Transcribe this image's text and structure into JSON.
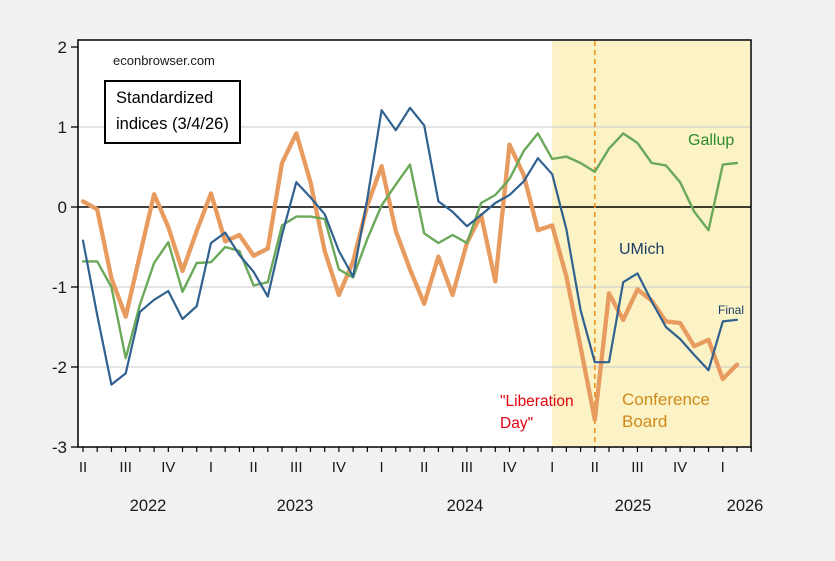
{
  "watermark": "econbrowser.com",
  "note_box": {
    "line1": "Standardized",
    "line2": "indices (3/4/26)"
  },
  "annotations": {
    "gallup": "Gallup",
    "umich": "UMich",
    "final": "Final",
    "conference_board_line1": "Conference",
    "conference_board_line2": "Board",
    "liberation_line1": "\"Liberation",
    "liberation_line2": "Day\""
  },
  "colors": {
    "background": "#f1f1ef",
    "plot_background": "#ffffff",
    "shaded_region": "#fbf2c5",
    "gridline": "#c9c9c9",
    "zero_line": "#000000",
    "frame": "#000000",
    "umich_line": "#30618f",
    "gallup_line": "#6ba95a",
    "conference_board_line": "#e89b5f",
    "vline": "#f0941e",
    "liberation_text": "#e3000f",
    "conference_text": "#cf8a1b",
    "umich_text": "#1c3e66",
    "gallup_text": "#2e8b2e"
  },
  "chart_data": {
    "type": "line",
    "title": "Standardized indices (3/4/26)",
    "source": "econbrowser.com",
    "freq": "monthly",
    "ylim": [
      -3,
      2
    ],
    "y_ticks": [
      2,
      1,
      0,
      -1,
      -2,
      -3
    ],
    "grid_values": [
      1,
      -1,
      -2
    ],
    "zero_line": 0,
    "legend_position": "labels-on-chart",
    "months": [
      "2022-04",
      "2022-05",
      "2022-06",
      "2022-07",
      "2022-08",
      "2022-09",
      "2022-10",
      "2022-11",
      "2022-12",
      "2023-01",
      "2023-02",
      "2023-03",
      "2023-04",
      "2023-05",
      "2023-06",
      "2023-07",
      "2023-08",
      "2023-09",
      "2023-10",
      "2023-11",
      "2023-12",
      "2024-01",
      "2024-02",
      "2024-03",
      "2024-04",
      "2024-05",
      "2024-06",
      "2024-07",
      "2024-08",
      "2024-09",
      "2024-10",
      "2024-11",
      "2024-12",
      "2025-01",
      "2025-02",
      "2025-03",
      "2025-04",
      "2025-05",
      "2025-06",
      "2025-07",
      "2025-08",
      "2025-09",
      "2025-10",
      "2025-11",
      "2025-12",
      "2026-01",
      "2026-02"
    ],
    "quarter_tick_labels": [
      "II",
      "III",
      "IV",
      "I",
      "II",
      "III",
      "IV",
      "I",
      "II",
      "III",
      "IV",
      "I",
      "II",
      "III",
      "IV",
      "I"
    ],
    "year_labels": [
      "2022",
      "2023",
      "2024",
      "2025",
      "2026"
    ],
    "shaded_region": {
      "from": "2025-01",
      "to": "2026-03"
    },
    "vline": {
      "x": "2025-04",
      "label": "Liberation Day"
    },
    "series": [
      {
        "name": "UMich",
        "color": "#30618f",
        "values": [
          -0.42,
          -1.35,
          -2.22,
          -2.08,
          -1.31,
          -1.16,
          -1.05,
          -1.4,
          -1.24,
          -0.45,
          -0.32,
          -0.6,
          -0.81,
          -1.12,
          -0.35,
          0.31,
          0.12,
          -0.09,
          -0.55,
          -0.87,
          0.1,
          1.21,
          0.96,
          1.24,
          1.02,
          0.07,
          -0.06,
          -0.24,
          -0.1,
          0.05,
          0.15,
          0.32,
          0.61,
          0.41,
          -0.28,
          -1.29,
          -1.94,
          -1.94,
          -0.94,
          -0.83,
          -1.18,
          -1.5,
          -1.65,
          -1.85,
          -2.04,
          -1.43,
          -1.41
        ]
      },
      {
        "name": "Gallup",
        "color": "#6ba95a",
        "values": [
          -0.68,
          -0.68,
          -1.0,
          -1.89,
          -1.22,
          -0.7,
          -0.44,
          -1.06,
          -0.7,
          -0.69,
          -0.5,
          -0.55,
          -0.98,
          -0.94,
          -0.23,
          -0.12,
          -0.12,
          -0.15,
          -0.78,
          -0.88,
          -0.4,
          0.02,
          0.28,
          0.53,
          -0.33,
          -0.45,
          -0.35,
          -0.45,
          0.05,
          0.15,
          0.35,
          0.7,
          0.92,
          0.6,
          0.63,
          0.55,
          0.44,
          0.73,
          0.92,
          0.8,
          0.55,
          0.52,
          0.31,
          -0.06,
          -0.29,
          0.53,
          0.55
        ]
      },
      {
        "name": "Conference Board",
        "color": "#e89b5f",
        "values": [
          0.07,
          -0.03,
          -0.89,
          -1.37,
          -0.6,
          0.16,
          -0.25,
          -0.8,
          -0.3,
          0.17,
          -0.43,
          -0.35,
          -0.61,
          -0.52,
          0.55,
          0.92,
          0.31,
          -0.55,
          -1.1,
          -0.68,
          0.02,
          0.51,
          -0.3,
          -0.78,
          -1.21,
          -0.62,
          -1.1,
          -0.45,
          -0.1,
          -0.93,
          0.78,
          0.4,
          -0.29,
          -0.23,
          -0.87,
          -1.75,
          -2.66,
          -1.08,
          -1.41,
          -1.03,
          -1.17,
          -1.43,
          -1.45,
          -1.74,
          -1.66,
          -2.15,
          -1.97
        ]
      }
    ]
  }
}
